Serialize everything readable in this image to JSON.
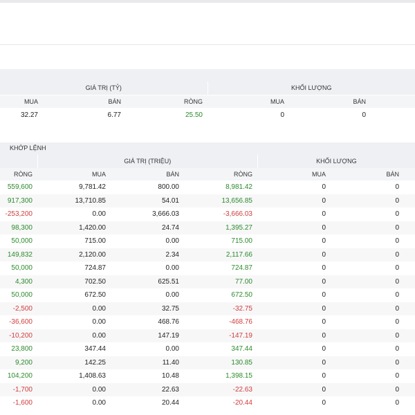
{
  "summary": {
    "group_value": "GIÁ TRỊ (TỶ)",
    "group_volume": "KHỐI LƯỢNG",
    "col_buy": "MUA",
    "col_sell": "BÁN",
    "col_net": "RÒNG",
    "vol_buy_label": "MUA",
    "vol_sell_label": "BÁN",
    "value_buy": "32.27",
    "value_sell": "6.77",
    "value_net": "25.50",
    "volume_buy": "0",
    "volume_sell": "0"
  },
  "detail": {
    "section_title": "KHỚP LỆNH",
    "group_value": "GIÁ TRỊ (TRIỆU)",
    "group_volume": "KHỐI LƯỢNG",
    "col_net_vol": "RÒNG",
    "col_buy": "MUA",
    "col_sell": "BÁN",
    "col_net": "RÒNG",
    "col_vol_buy": "MUA",
    "col_vol_sell": "BÁN",
    "rows": [
      {
        "net_vol": "559,600",
        "buy": "9,781.42",
        "sell": "800.00",
        "net": "8,981.42",
        "vbuy": "0",
        "vsell": "0",
        "nv_sign": "pos",
        "n_sign": "pos"
      },
      {
        "net_vol": "917,300",
        "buy": "13,710.85",
        "sell": "54.01",
        "net": "13,656.85",
        "vbuy": "0",
        "vsell": "0",
        "nv_sign": "pos",
        "n_sign": "pos"
      },
      {
        "net_vol": "-253,200",
        "buy": "0.00",
        "sell": "3,666.03",
        "net": "-3,666.03",
        "vbuy": "0",
        "vsell": "0",
        "nv_sign": "neg",
        "n_sign": "neg"
      },
      {
        "net_vol": "98,300",
        "buy": "1,420.00",
        "sell": "24.74",
        "net": "1,395.27",
        "vbuy": "0",
        "vsell": "0",
        "nv_sign": "pos",
        "n_sign": "pos"
      },
      {
        "net_vol": "50,000",
        "buy": "715.00",
        "sell": "0.00",
        "net": "715.00",
        "vbuy": "0",
        "vsell": "0",
        "nv_sign": "pos",
        "n_sign": "pos"
      },
      {
        "net_vol": "149,832",
        "buy": "2,120.00",
        "sell": "2.34",
        "net": "2,117.66",
        "vbuy": "0",
        "vsell": "0",
        "nv_sign": "pos",
        "n_sign": "pos"
      },
      {
        "net_vol": "50,000",
        "buy": "724.87",
        "sell": "0.00",
        "net": "724.87",
        "vbuy": "0",
        "vsell": "0",
        "nv_sign": "pos",
        "n_sign": "pos"
      },
      {
        "net_vol": "4,300",
        "buy": "702.50",
        "sell": "625.51",
        "net": "77.00",
        "vbuy": "0",
        "vsell": "0",
        "nv_sign": "pos",
        "n_sign": "pos"
      },
      {
        "net_vol": "50,000",
        "buy": "672.50",
        "sell": "0.00",
        "net": "672.50",
        "vbuy": "0",
        "vsell": "0",
        "nv_sign": "pos",
        "n_sign": "pos"
      },
      {
        "net_vol": "-2,500",
        "buy": "0.00",
        "sell": "32.75",
        "net": "-32.75",
        "vbuy": "0",
        "vsell": "0",
        "nv_sign": "neg",
        "n_sign": "neg"
      },
      {
        "net_vol": "-36,600",
        "buy": "0.00",
        "sell": "468.76",
        "net": "-468.76",
        "vbuy": "0",
        "vsell": "0",
        "nv_sign": "neg",
        "n_sign": "neg"
      },
      {
        "net_vol": "-10,200",
        "buy": "0.00",
        "sell": "147.19",
        "net": "-147.19",
        "vbuy": "0",
        "vsell": "0",
        "nv_sign": "neg",
        "n_sign": "neg"
      },
      {
        "net_vol": "23,800",
        "buy": "347.44",
        "sell": "0.00",
        "net": "347.44",
        "vbuy": "0",
        "vsell": "0",
        "nv_sign": "pos",
        "n_sign": "pos"
      },
      {
        "net_vol": "9,200",
        "buy": "142.25",
        "sell": "11.40",
        "net": "130.85",
        "vbuy": "0",
        "vsell": "0",
        "nv_sign": "pos",
        "n_sign": "pos"
      },
      {
        "net_vol": "104,200",
        "buy": "1,408.63",
        "sell": "10.48",
        "net": "1,398.15",
        "vbuy": "0",
        "vsell": "0",
        "nv_sign": "pos",
        "n_sign": "pos"
      },
      {
        "net_vol": "-1,700",
        "buy": "0.00",
        "sell": "22.63",
        "net": "-22.63",
        "vbuy": "0",
        "vsell": "0",
        "nv_sign": "neg",
        "n_sign": "neg"
      },
      {
        "net_vol": "-1,600",
        "buy": "0.00",
        "sell": "20.44",
        "net": "-20.44",
        "vbuy": "0",
        "vsell": "0",
        "nv_sign": "neg",
        "n_sign": "neg"
      }
    ]
  },
  "colors": {
    "positive": "#2a8a2a",
    "negative": "#d13b3b",
    "header_bg": "#eef0f3"
  }
}
